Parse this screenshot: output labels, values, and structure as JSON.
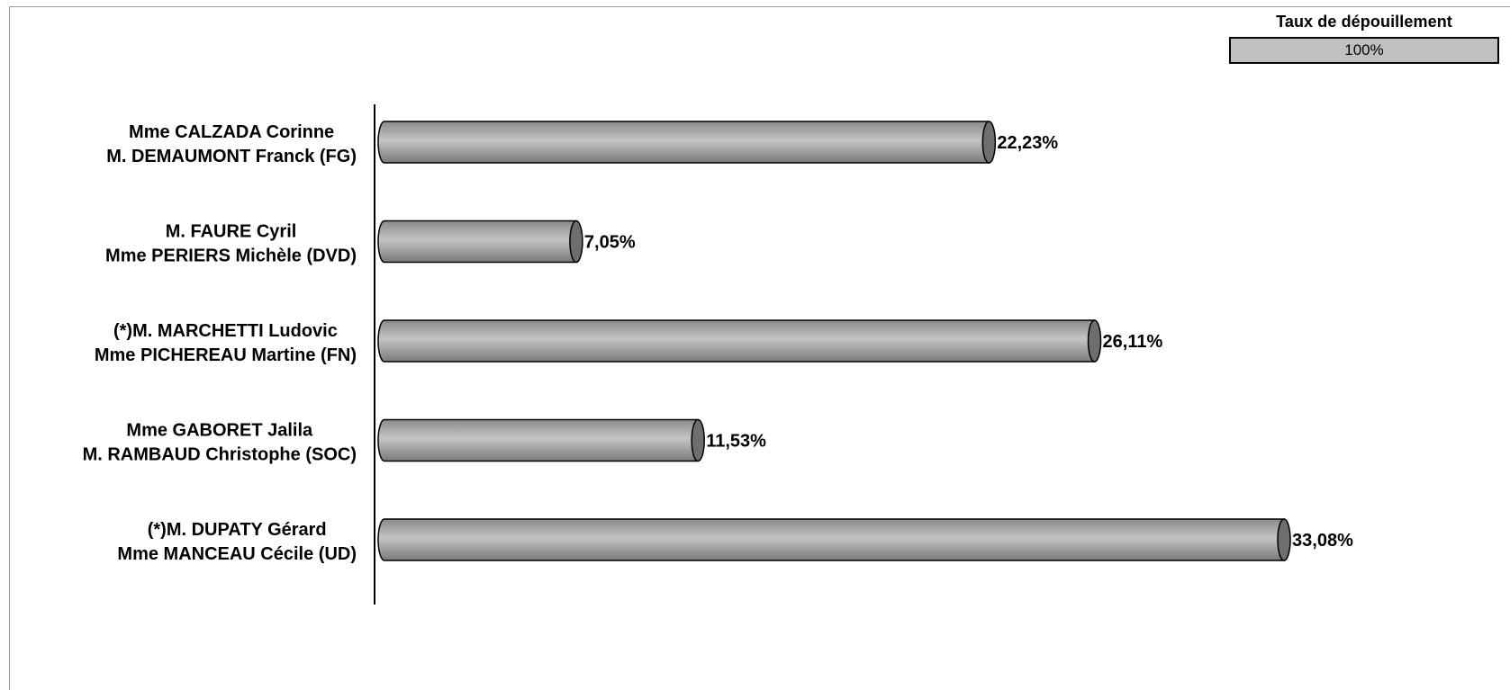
{
  "taux": {
    "title": "Taux de dépouillement",
    "value": "100%"
  },
  "colors": {
    "bar": "#a6a6a6",
    "bar_dark": "#6e6e6e",
    "bar_light": "#c8c8c8",
    "outline": "#000000"
  },
  "chart_data": {
    "type": "bar",
    "orientation": "horizontal",
    "categories": [
      [
        "Mme CALZADA Corinne",
        "M. DEMAUMONT Franck (FG)"
      ],
      [
        "M. FAURE Cyril",
        "Mme PERIERS Michèle (DVD)"
      ],
      [
        "(*)M. MARCHETTI Ludovic",
        "Mme PICHEREAU Martine (FN)"
      ],
      [
        "Mme GABORET Jalila",
        "M. RAMBAUD Christophe (SOC)"
      ],
      [
        "(*)M. DUPATY Gérard",
        "Mme MANCEAU Cécile (UD)"
      ]
    ],
    "values": [
      22.23,
      7.05,
      26.11,
      11.53,
      33.08
    ],
    "value_labels": [
      "22,23%",
      "7,05%",
      "26,11%",
      "11,53%",
      "33,08%"
    ],
    "xlim": [
      0,
      36
    ],
    "title": "",
    "xlabel": "",
    "ylabel": "",
    "grid": false
  }
}
